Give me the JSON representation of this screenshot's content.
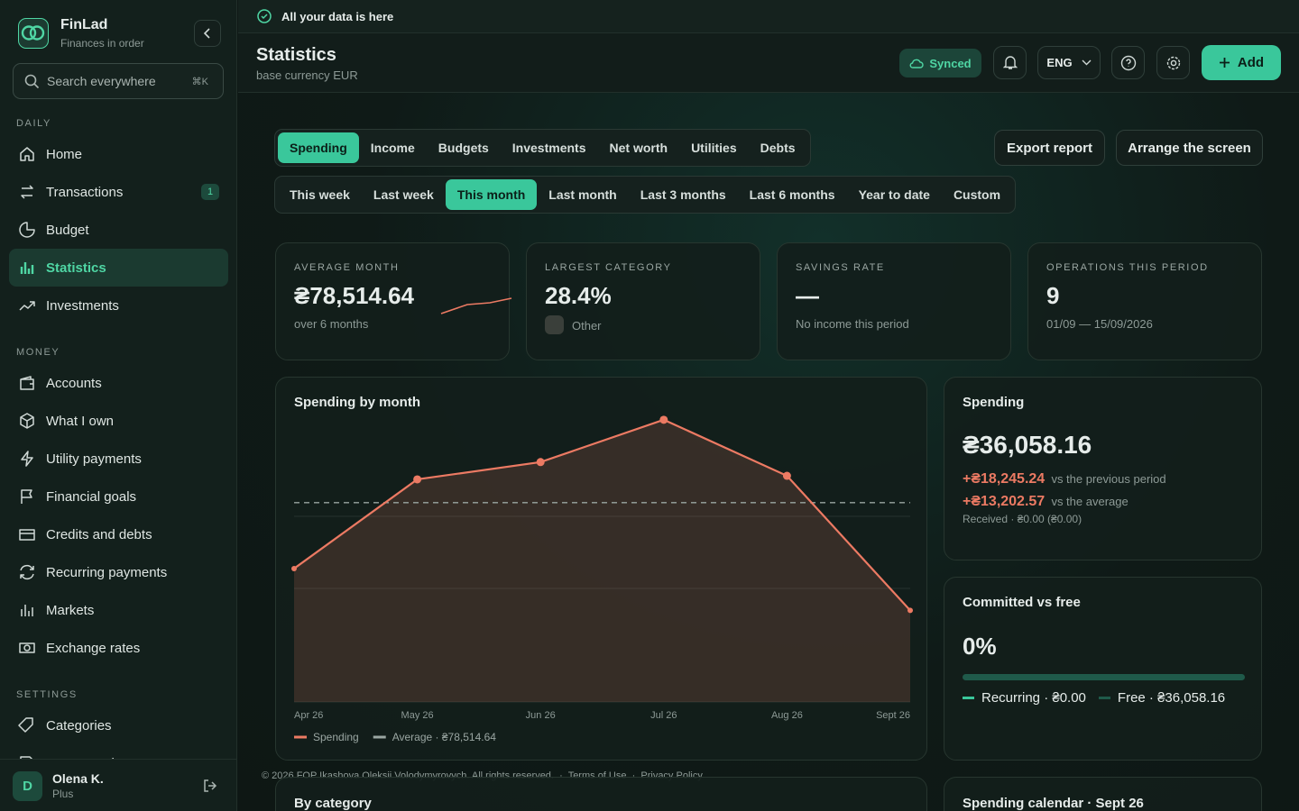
{
  "sidebar": {
    "brand": "FinLad",
    "tagline": "Finances in order",
    "search": "Search everywhere",
    "shortcut": "⌘K",
    "sections": [
      {
        "title": "DAILY",
        "items": [
          {
            "label": "Home"
          },
          {
            "label": "Transactions",
            "badge": "1"
          },
          {
            "label": "Budget"
          },
          {
            "label": "Statistics"
          },
          {
            "label": "Investments"
          }
        ]
      },
      {
        "title": "MONEY",
        "items": [
          {
            "label": "Accounts"
          },
          {
            "label": "What I own"
          },
          {
            "label": "Utility payments"
          },
          {
            "label": "Financial goals"
          },
          {
            "label": "Credits and debts"
          },
          {
            "label": "Recurring payments"
          },
          {
            "label": "Markets"
          },
          {
            "label": "Exchange rates"
          }
        ]
      },
      {
        "title": "SETTINGS",
        "items": [
          {
            "label": "Categories"
          },
          {
            "label": "Statement import"
          }
        ]
      }
    ],
    "active_section": 0,
    "active_item": 3,
    "user": {
      "initial": "D",
      "name": "Olena K.",
      "plan": "Plus"
    }
  },
  "banner": "All your data is here",
  "header": {
    "title": "Statistics",
    "subtitle": "base currency EUR",
    "synced": "Synced",
    "language": "ENG",
    "add": "Add"
  },
  "tabs": [
    "Spending",
    "Income",
    "Budgets",
    "Investments",
    "Net worth",
    "Utilities",
    "Debts"
  ],
  "active_tab": 0,
  "actions": [
    "Export report",
    "Arrange the screen"
  ],
  "periods": [
    "This week",
    "Last week",
    "This month",
    "Last month",
    "Last 3 months",
    "Last 6 months",
    "Year to date",
    "Custom"
  ],
  "active_period": 2,
  "kpis": [
    {
      "label": "AVERAGE MONTH",
      "value": "₴78,514.64",
      "note": "over 6 months"
    },
    {
      "label": "LARGEST CATEGORY",
      "value": "28.4%",
      "note": "Other"
    },
    {
      "label": "SAVINGS RATE",
      "value": "—",
      "note": "No income this period"
    },
    {
      "label": "OPERATIONS THIS PERIOD",
      "value": "9",
      "note": "01/09 — 15/09/2026"
    }
  ],
  "chart_data": {
    "type": "line",
    "title": "Spending by month",
    "categories": [
      "Apr 26",
      "May 26",
      "Jun 26",
      "Jul 26",
      "Aug 26",
      "Sept 26"
    ],
    "series": [
      {
        "name": "Spending",
        "color": "#ec7a63",
        "values": [
          52560,
          87700,
          94500,
          111170,
          89100,
          36058.16
        ]
      }
    ],
    "reference_line": {
      "name": "Average · ₴78,514.64",
      "value": 78514.64,
      "color": "#9aa6a2"
    },
    "ylim": [
      0,
      113600
    ]
  },
  "spending": {
    "title": "Spending",
    "total": "₴36,058.16",
    "delta_previous": "+₴18,245.24",
    "delta_previous_note": "vs the previous period",
    "delta_average": "+₴13,202.57",
    "delta_average_note": "vs the average",
    "received": "Received · ₴0.00 (₴0.00)"
  },
  "committed": {
    "title": "Committed vs free",
    "percent": "0%",
    "recurring": "Recurring · ₴0.00",
    "free": "Free · ₴36,058.16"
  },
  "footer": {
    "copyright": "© 2026 FOP Ikashova Oleksii Volodymyrovych. All rights reserved.",
    "terms": "Terms of Use",
    "privacy": "Privacy Policy"
  },
  "by_category": {
    "title": "By category"
  },
  "calendar": {
    "title": "Spending calendar · Sept 26"
  }
}
